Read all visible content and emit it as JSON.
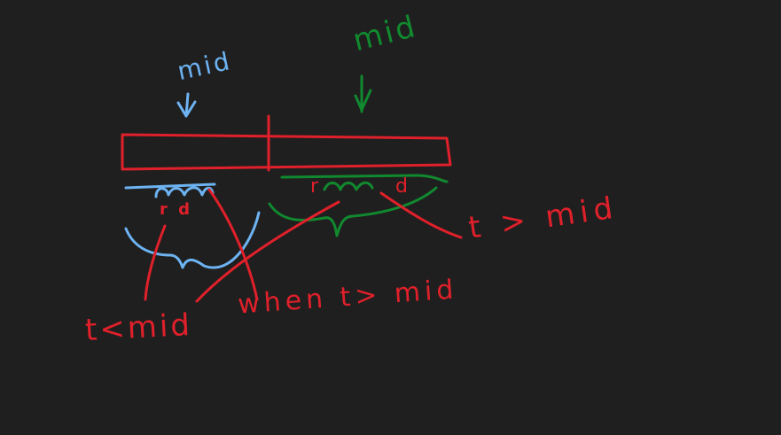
{
  "colors": {
    "background": "#1f1f1f",
    "red": "#e0202a",
    "blue": "#6db3f2",
    "green": "#11892f"
  },
  "labels": {
    "mid_left": "mid",
    "mid_right": "mid",
    "t_less_mid": "t<mid",
    "when_t_gt_mid": "when t> mid",
    "t_gt_mid": "t > mid",
    "rd_left": "r d",
    "rd_right": "r d"
  }
}
